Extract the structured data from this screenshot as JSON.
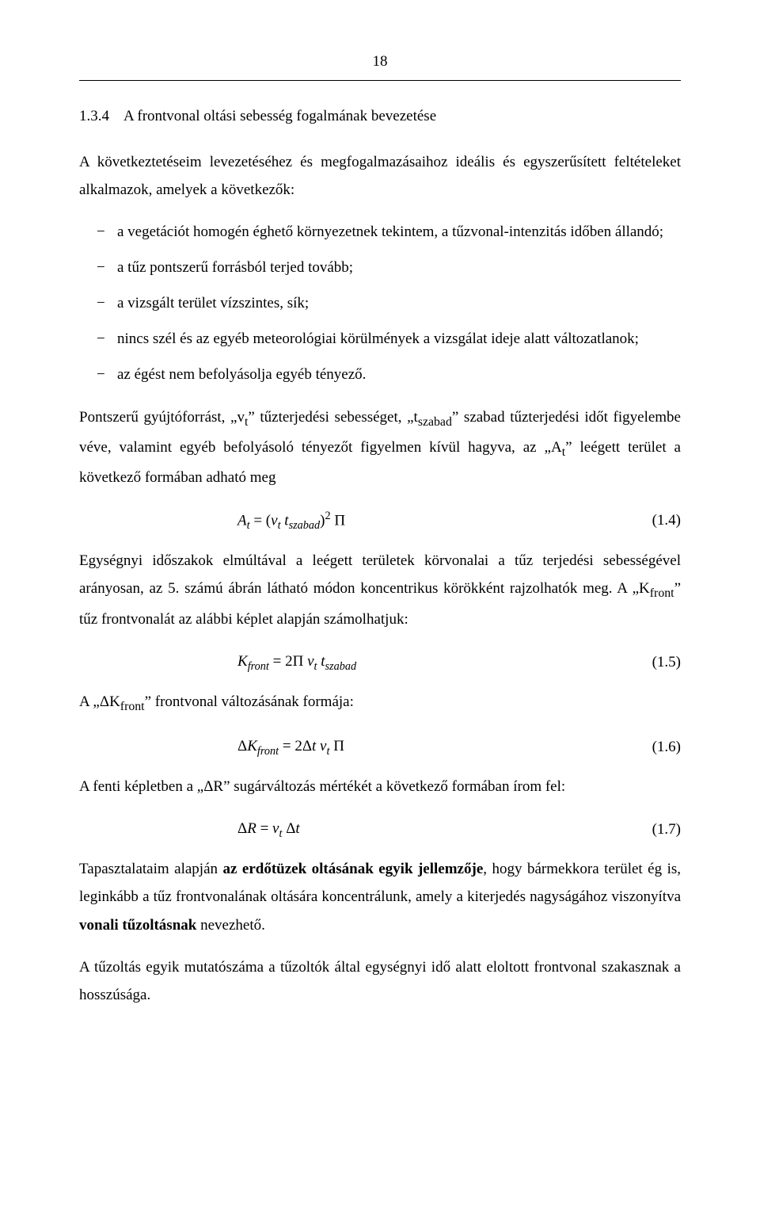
{
  "page": {
    "number": "18"
  },
  "section": {
    "number": "1.3.4",
    "title": "A frontvonal oltási sebesség fogalmának bevezetése"
  },
  "intro": "A következtetéseim levezetéséhez és megfogalmazásaihoz ideális és egyszerűsített feltételeket alkalmazok, amelyek a következők:",
  "bullets": [
    "a vegetációt homogén éghető környezetnek tekintem, a tűzvonal-intenzitás időben állandó;",
    "a tűz pontszerű forrásból terjed tovább;",
    "a vizsgált terület vízszintes, sík;",
    "nincs szél és az egyéb meteorológiai körülmények a vizsgálat ideje alatt változatlanok;",
    "az égést nem befolyásolja egyéb tényező."
  ],
  "para2": "Pontszerű gyújtóforrást, „vₜ” tűzterjedési sebességet, „t_szabad” szabad tűzterjedési időt figyelembe véve, valamint egyéb befolyásoló tényezőt figyelmen kívül hagyva, az „Aₜ” leégett terület a következő formában adható meg",
  "eq1": {
    "body": "Aₜ = (vₜ t_szabad)² Π",
    "label": "(1.4)"
  },
  "para3": "Egységnyi időszakok elmúltával a leégett területek körvonalai a tűz terjedési sebességével arányosan, az 5. számú ábrán látható módon koncentrikus körökként rajzolhatók meg. A „K_front” tűz frontvonalát az alábbi képlet alapján számolhatjuk:",
  "eq2": {
    "body": "K_front = 2Π vₜ t_szabad",
    "label": "(1.5)"
  },
  "para4": "A „ΔK_front” frontvonal változásának formája:",
  "eq3": {
    "body": "ΔK_front = 2Δt vₜ Π",
    "label": "(1.6)"
  },
  "para5": "A fenti képletben a „ΔR” sugárváltozás mértékét a következő formában írom fel:",
  "eq4": {
    "body": "ΔR = vₜ Δt",
    "label": "(1.7)"
  },
  "para6_pre": "Tapasztalataim alapján ",
  "para6_bold1": "az erdőtüzek oltásának egyik jellemzője",
  "para6_mid": ", hogy bármekkora terület ég is, leginkább a tűz frontvonalának oltására koncentrálunk, amely a kiterjedés nagyságához viszonyítva ",
  "para6_bold2": "vonali tűzoltásnak",
  "para6_post": " nevezhető.",
  "para7": "A tűzoltás egyik mutatószáma a tűzoltók által egységnyi idő alatt eloltott frontvonal szakasznak a hosszúsága."
}
